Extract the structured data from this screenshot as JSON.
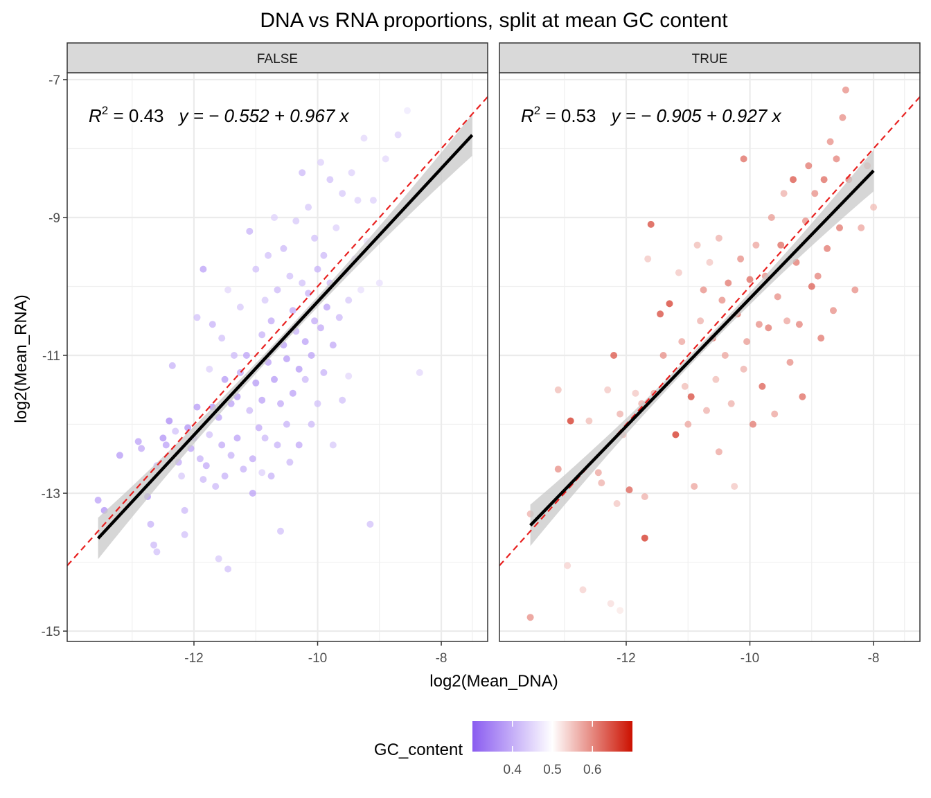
{
  "chart_data": {
    "type": "scatter",
    "title": "DNA vs RNA proportions, split at mean GC content",
    "xlabel": "log2(Mean_DNA)",
    "ylabel": "log2(Mean_RNA)",
    "xlim": [
      -14.05,
      -7.25
    ],
    "ylim": [
      -15.15,
      -6.9
    ],
    "x_ticks": [
      -12,
      -10,
      -8
    ],
    "y_ticks": [
      -15,
      -13,
      -11,
      -9,
      -7
    ],
    "x_tick_labels": [
      "-12",
      "-10",
      "-8"
    ],
    "y_tick_labels": [
      "-15",
      "-13",
      "-11",
      "-9",
      "-7"
    ],
    "grid": true,
    "legend": {
      "title": "GC_content",
      "position": "bottom",
      "range": [
        0.3,
        0.7
      ],
      "midpoint": 0.5,
      "ticks": [
        0.4,
        0.5,
        0.6
      ],
      "tick_labels": [
        "0.4",
        "0.5",
        "0.6"
      ],
      "low_color": "#8a5cf0",
      "mid_color": "#ffffff",
      "high_color": "#cc1100"
    },
    "reference_line": {
      "slope": 1,
      "intercept": 0,
      "color": "#e8201f",
      "style": "dashed"
    },
    "fit_color": "#000000",
    "band_color": "#c8c8c8",
    "panels": [
      {
        "strip": "FALSE",
        "r2_value": "0.43",
        "equation": "y = − 0.552 + 0.967 x",
        "fit": {
          "intercept": -0.552,
          "slope": 0.967,
          "x_range": [
            -13.55,
            -7.5
          ]
        },
        "points": [
          [
            -13.55,
            -13.1,
            0.38
          ],
          [
            -13.45,
            -13.25,
            0.36
          ],
          [
            -13.2,
            -12.45,
            0.37
          ],
          [
            -12.9,
            -12.25,
            0.38
          ],
          [
            -12.85,
            -12.35,
            0.39
          ],
          [
            -12.75,
            -13.05,
            0.36
          ],
          [
            -12.7,
            -13.45,
            0.4
          ],
          [
            -12.65,
            -13.75,
            0.41
          ],
          [
            -12.6,
            -13.85,
            0.42
          ],
          [
            -12.6,
            -12.6,
            0.41
          ],
          [
            -12.5,
            -12.2,
            0.36
          ],
          [
            -12.45,
            -12.3,
            0.38
          ],
          [
            -12.4,
            -11.95,
            0.35
          ],
          [
            -12.35,
            -11.15,
            0.4
          ],
          [
            -12.3,
            -12.1,
            0.42
          ],
          [
            -12.25,
            -12.55,
            0.39
          ],
          [
            -12.2,
            -12.75,
            0.43
          ],
          [
            -12.15,
            -13.25,
            0.41
          ],
          [
            -12.15,
            -13.6,
            0.42
          ],
          [
            -12.1,
            -12.05,
            0.36
          ],
          [
            -12.05,
            -12.35,
            0.38
          ],
          [
            -12.0,
            -12.2,
            0.41
          ],
          [
            -11.95,
            -10.45,
            0.42
          ],
          [
            -11.95,
            -11.75,
            0.37
          ],
          [
            -11.9,
            -12.5,
            0.4
          ],
          [
            -11.85,
            -12.8,
            0.41
          ],
          [
            -11.85,
            -9.75,
            0.38
          ],
          [
            -11.8,
            -12.6,
            0.39
          ],
          [
            -11.75,
            -11.2,
            0.44
          ],
          [
            -11.75,
            -12.15,
            0.42
          ],
          [
            -11.7,
            -11.75,
            0.36
          ],
          [
            -11.7,
            -10.55,
            0.4
          ],
          [
            -11.65,
            -12.9,
            0.41
          ],
          [
            -11.6,
            -11.9,
            0.38
          ],
          [
            -11.6,
            -13.95,
            0.43
          ],
          [
            -11.55,
            -10.75,
            0.42
          ],
          [
            -11.55,
            -12.3,
            0.39
          ],
          [
            -11.5,
            -11.35,
            0.37
          ],
          [
            -11.5,
            -12.75,
            0.4
          ],
          [
            -11.45,
            -14.1,
            0.42
          ],
          [
            -11.45,
            -10.05,
            0.45
          ],
          [
            -11.4,
            -11.7,
            0.38
          ],
          [
            -11.4,
            -12.45,
            0.4
          ],
          [
            -11.35,
            -11.0,
            0.41
          ],
          [
            -11.3,
            -11.6,
            0.37
          ],
          [
            -11.3,
            -12.2,
            0.38
          ],
          [
            -11.25,
            -10.3,
            0.43
          ],
          [
            -11.25,
            -11.25,
            0.39
          ],
          [
            -11.2,
            -12.65,
            0.4
          ],
          [
            -11.15,
            -11.0,
            0.38
          ],
          [
            -11.1,
            -9.2,
            0.4
          ],
          [
            -11.1,
            -11.8,
            0.41
          ],
          [
            -11.05,
            -12.5,
            0.39
          ],
          [
            -11.05,
            -13.0,
            0.38
          ],
          [
            -11.0,
            -9.75,
            0.42
          ],
          [
            -11.0,
            -11.4,
            0.37
          ],
          [
            -10.95,
            -12.05,
            0.39
          ],
          [
            -10.9,
            -10.7,
            0.4
          ],
          [
            -10.9,
            -11.65,
            0.38
          ],
          [
            -10.85,
            -12.2,
            0.41
          ],
          [
            -10.85,
            -10.2,
            0.43
          ],
          [
            -10.8,
            -9.55,
            0.42
          ],
          [
            -10.8,
            -11.1,
            0.38
          ],
          [
            -10.75,
            -10.5,
            0.39
          ],
          [
            -10.75,
            -12.75,
            0.4
          ],
          [
            -10.7,
            -9.0,
            0.44
          ],
          [
            -10.7,
            -11.35,
            0.37
          ],
          [
            -10.65,
            -10.05,
            0.41
          ],
          [
            -10.65,
            -12.3,
            0.4
          ],
          [
            -10.6,
            -11.7,
            0.39
          ],
          [
            -10.6,
            -13.55,
            0.42
          ],
          [
            -10.55,
            -10.85,
            0.38
          ],
          [
            -10.55,
            -9.45,
            0.41
          ],
          [
            -10.5,
            -11.05,
            0.37
          ],
          [
            -10.5,
            -12.0,
            0.4
          ],
          [
            -10.45,
            -9.85,
            0.42
          ],
          [
            -10.45,
            -12.55,
            0.41
          ],
          [
            -10.4,
            -10.35,
            0.39
          ],
          [
            -10.4,
            -11.55,
            0.38
          ],
          [
            -10.35,
            -9.05,
            0.43
          ],
          [
            -10.35,
            -10.65,
            0.4
          ],
          [
            -10.3,
            -11.2,
            0.37
          ],
          [
            -10.3,
            -12.3,
            0.39
          ],
          [
            -10.25,
            -8.35,
            0.41
          ],
          [
            -10.25,
            -9.95,
            0.42
          ],
          [
            -10.2,
            -10.8,
            0.38
          ],
          [
            -10.2,
            -11.35,
            0.41
          ],
          [
            -10.15,
            -8.85,
            0.43
          ],
          [
            -10.15,
            -10.1,
            0.4
          ],
          [
            -10.1,
            -11.0,
            0.38
          ],
          [
            -10.1,
            -12.0,
            0.41
          ],
          [
            -10.05,
            -9.3,
            0.42
          ],
          [
            -10.05,
            -10.5,
            0.39
          ],
          [
            -10.0,
            -9.75,
            0.4
          ],
          [
            -10.0,
            -11.7,
            0.42
          ],
          [
            -9.95,
            -8.2,
            0.44
          ],
          [
            -9.95,
            -10.6,
            0.39
          ],
          [
            -9.9,
            -9.55,
            0.41
          ],
          [
            -9.9,
            -11.25,
            0.4
          ],
          [
            -9.85,
            -10.3,
            0.38
          ],
          [
            -9.8,
            -8.45,
            0.42
          ],
          [
            -9.8,
            -9.95,
            0.41
          ],
          [
            -9.75,
            -10.85,
            0.39
          ],
          [
            -9.75,
            -12.3,
            0.43
          ],
          [
            -9.7,
            -9.15,
            0.44
          ],
          [
            -9.65,
            -10.45,
            0.41
          ],
          [
            -9.6,
            -8.65,
            0.43
          ],
          [
            -9.6,
            -11.65,
            0.42
          ],
          [
            -9.55,
            -9.8,
            0.45
          ],
          [
            -9.5,
            -10.2,
            0.43
          ],
          [
            -9.45,
            -8.35,
            0.44
          ],
          [
            -9.4,
            -9.6,
            0.45
          ],
          [
            -9.35,
            -8.75,
            0.44
          ],
          [
            -9.3,
            -10.05,
            0.46
          ],
          [
            -9.25,
            -7.85,
            0.45
          ],
          [
            -9.2,
            -9.35,
            0.46
          ],
          [
            -9.15,
            -13.45,
            0.42
          ],
          [
            -9.1,
            -8.75,
            0.44
          ],
          [
            -9.0,
            -9.95,
            0.46
          ],
          [
            -8.9,
            -8.15,
            0.45
          ],
          [
            -8.7,
            -7.8,
            0.44
          ],
          [
            -8.55,
            -7.45,
            0.47
          ],
          [
            -8.35,
            -11.25,
            0.45
          ],
          [
            -9.5,
            -11.3,
            0.45
          ],
          [
            -10.9,
            -12.7,
            0.44
          ]
        ]
      },
      {
        "strip": "TRUE",
        "r2_value": "0.53",
        "equation": "y = − 0.905 + 0.927 x",
        "fit": {
          "intercept": -0.905,
          "slope": 0.927,
          "x_range": [
            -13.55,
            -8.0
          ]
        },
        "points": [
          [
            -13.55,
            -14.8,
            0.6
          ],
          [
            -13.55,
            -13.3,
            0.57
          ],
          [
            -13.1,
            -12.65,
            0.6
          ],
          [
            -13.1,
            -11.5,
            0.56
          ],
          [
            -12.95,
            -14.05,
            0.54
          ],
          [
            -12.9,
            -11.95,
            0.68
          ],
          [
            -12.7,
            -14.4,
            0.54
          ],
          [
            -12.6,
            -11.95,
            0.56
          ],
          [
            -12.45,
            -12.7,
            0.58
          ],
          [
            -12.4,
            -12.85,
            0.57
          ],
          [
            -12.3,
            -11.5,
            0.55
          ],
          [
            -12.25,
            -14.6,
            0.53
          ],
          [
            -12.2,
            -11.0,
            0.65
          ],
          [
            -12.15,
            -13.15,
            0.55
          ],
          [
            -12.1,
            -11.85,
            0.57
          ],
          [
            -12.1,
            -14.7,
            0.52
          ],
          [
            -12.05,
            -12.15,
            0.56
          ],
          [
            -11.95,
            -12.95,
            0.64
          ],
          [
            -11.85,
            -11.55,
            0.55
          ],
          [
            -11.75,
            -11.7,
            0.57
          ],
          [
            -11.7,
            -13.65,
            0.68
          ],
          [
            -11.7,
            -13.05,
            0.57
          ],
          [
            -11.65,
            -9.6,
            0.55
          ],
          [
            -11.6,
            -9.1,
            0.66
          ],
          [
            -11.55,
            -11.55,
            0.58
          ],
          [
            -11.45,
            -10.4,
            0.66
          ],
          [
            -11.4,
            -11.0,
            0.6
          ],
          [
            -11.3,
            -10.25,
            0.67
          ],
          [
            -11.2,
            -12.15,
            0.68
          ],
          [
            -11.15,
            -9.8,
            0.55
          ],
          [
            -11.1,
            -10.8,
            0.58
          ],
          [
            -11.05,
            -11.45,
            0.56
          ],
          [
            -11.0,
            -12.0,
            0.58
          ],
          [
            -10.95,
            -11.6,
            0.66
          ],
          [
            -10.9,
            -12.9,
            0.58
          ],
          [
            -10.85,
            -9.4,
            0.56
          ],
          [
            -10.8,
            -10.5,
            0.57
          ],
          [
            -10.75,
            -10.05,
            0.6
          ],
          [
            -10.7,
            -11.8,
            0.57
          ],
          [
            -10.65,
            -9.65,
            0.55
          ],
          [
            -10.6,
            -10.75,
            0.65
          ],
          [
            -10.55,
            -11.35,
            0.56
          ],
          [
            -10.5,
            -12.4,
            0.58
          ],
          [
            -10.5,
            -9.3,
            0.57
          ],
          [
            -10.45,
            -10.2,
            0.6
          ],
          [
            -10.4,
            -11.0,
            0.58
          ],
          [
            -10.35,
            -9.95,
            0.62
          ],
          [
            -10.3,
            -11.7,
            0.57
          ],
          [
            -10.25,
            -12.9,
            0.55
          ],
          [
            -10.2,
            -10.4,
            0.64
          ],
          [
            -10.15,
            -9.6,
            0.6
          ],
          [
            -10.1,
            -11.2,
            0.57
          ],
          [
            -10.1,
            -8.15,
            0.63
          ],
          [
            -10.05,
            -10.8,
            0.59
          ],
          [
            -10.0,
            -9.9,
            0.63
          ],
          [
            -9.95,
            -12.0,
            0.62
          ],
          [
            -9.9,
            -9.4,
            0.58
          ],
          [
            -9.85,
            -10.55,
            0.6
          ],
          [
            -9.8,
            -11.45,
            0.64
          ],
          [
            -9.75,
            -9.85,
            0.6
          ],
          [
            -9.7,
            -10.6,
            0.62
          ],
          [
            -9.65,
            -9.0,
            0.59
          ],
          [
            -9.6,
            -11.85,
            0.58
          ],
          [
            -9.55,
            -10.15,
            0.6
          ],
          [
            -9.5,
            -9.4,
            0.63
          ],
          [
            -9.45,
            -8.65,
            0.57
          ],
          [
            -9.4,
            -10.5,
            0.58
          ],
          [
            -9.35,
            -11.1,
            0.6
          ],
          [
            -9.3,
            -8.45,
            0.65
          ],
          [
            -9.25,
            -9.65,
            0.62
          ],
          [
            -9.2,
            -10.55,
            0.61
          ],
          [
            -9.15,
            -11.6,
            0.63
          ],
          [
            -9.1,
            -9.05,
            0.6
          ],
          [
            -9.05,
            -8.25,
            0.62
          ],
          [
            -9.0,
            -10.0,
            0.64
          ],
          [
            -8.95,
            -8.65,
            0.6
          ],
          [
            -8.9,
            -9.85,
            0.61
          ],
          [
            -8.85,
            -10.75,
            0.62
          ],
          [
            -8.8,
            -8.45,
            0.63
          ],
          [
            -8.75,
            -9.45,
            0.62
          ],
          [
            -8.7,
            -7.9,
            0.6
          ],
          [
            -8.65,
            -10.35,
            0.6
          ],
          [
            -8.6,
            -8.15,
            0.61
          ],
          [
            -8.55,
            -9.15,
            0.62
          ],
          [
            -8.5,
            -7.55,
            0.6
          ],
          [
            -8.45,
            -7.15,
            0.6
          ],
          [
            -8.4,
            -8.45,
            0.61
          ],
          [
            -8.3,
            -10.05,
            0.6
          ],
          [
            -8.2,
            -9.15,
            0.58
          ],
          [
            -8.1,
            -8.25,
            0.57
          ],
          [
            -8.0,
            -8.85,
            0.56
          ]
        ]
      }
    ]
  }
}
